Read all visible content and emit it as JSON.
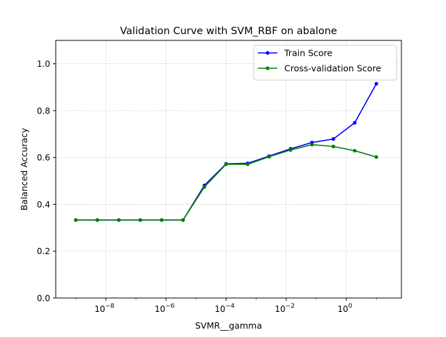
{
  "chart_data": {
    "type": "line",
    "title": "Validation Curve with SVM_RBF on abalone",
    "xlabel": "SVMR__gamma",
    "ylabel": "Balanced Accuracy",
    "x_scale": "log",
    "x_exponent_range": [
      -9.667,
      1.833
    ],
    "ylim": [
      0.0,
      1.1
    ],
    "x_ticks": [
      {
        "exponent": -8,
        "base": "10",
        "exp_label": "−8"
      },
      {
        "exponent": -6,
        "base": "10",
        "exp_label": "−6"
      },
      {
        "exponent": -4,
        "base": "10",
        "exp_label": "−4"
      },
      {
        "exponent": -2,
        "base": "10",
        "exp_label": "−2"
      },
      {
        "exponent": 0,
        "base": "10",
        "exp_label": "0"
      }
    ],
    "y_ticks": [
      {
        "value": 0.0,
        "label": "0.0"
      },
      {
        "value": 0.2,
        "label": "0.2"
      },
      {
        "value": 0.4,
        "label": "0.4"
      },
      {
        "value": 0.6,
        "label": "0.6"
      },
      {
        "value": 0.8,
        "label": "0.8"
      },
      {
        "value": 1.0,
        "label": "1.0"
      }
    ],
    "grid": true,
    "grid_style": "dotted",
    "legend_position": "top-right",
    "x": [
      1e-09,
      5.2e-09,
      2.7e-08,
      1.4e-07,
      7.2e-07,
      3.7e-06,
      1.9e-05,
      0.0001,
      0.00052,
      0.0027,
      0.014,
      0.072,
      0.37,
      1.9,
      10.0
    ],
    "series": [
      {
        "name": "Train Score",
        "color": "#0000ff",
        "values": [
          0.333,
          0.333,
          0.333,
          0.333,
          0.333,
          0.333,
          0.481,
          0.573,
          0.575,
          0.606,
          0.637,
          0.664,
          0.679,
          0.748,
          0.915
        ]
      },
      {
        "name": "Cross-validation Score",
        "color": "#008000",
        "values": [
          0.333,
          0.333,
          0.333,
          0.333,
          0.333,
          0.333,
          0.474,
          0.571,
          0.571,
          0.603,
          0.632,
          0.655,
          0.647,
          0.629,
          0.602
        ]
      }
    ]
  }
}
